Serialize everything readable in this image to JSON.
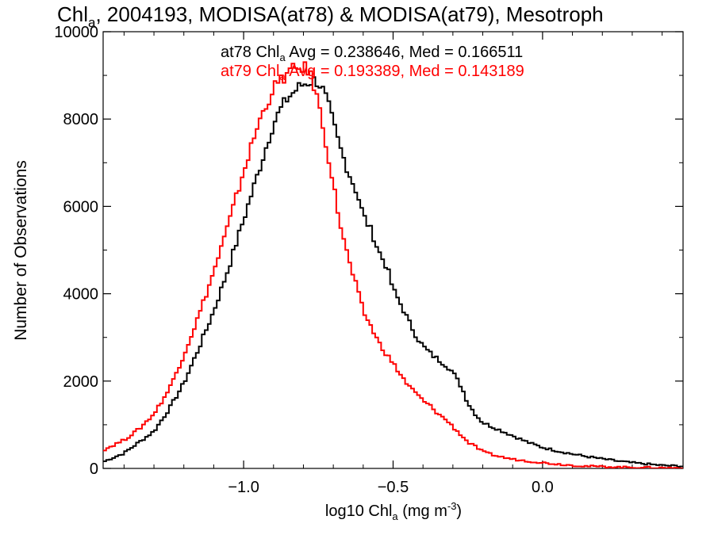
{
  "chart_data": {
    "type": "line",
    "title": {
      "pre": "Chl",
      "sub": "a",
      "post": ", 2004193, MODISA(at78) & MODISA(at79), Mesotroph"
    },
    "xlabel": {
      "pre": "log10 Chl",
      "sub": "a",
      "mid": " (mg m",
      "sup": "-3",
      "post": ")"
    },
    "ylabel": "Number of Observations",
    "xlim": [
      -1.47,
      0.47
    ],
    "ylim": [
      0,
      10000
    ],
    "xticks": [
      {
        "value": -1.0,
        "label": "−1.0"
      },
      {
        "value": -0.5,
        "label": "−0.5"
      },
      {
        "value": 0.0,
        "label": "0.0"
      }
    ],
    "yticks": [
      {
        "value": 0,
        "label": "0"
      },
      {
        "value": 2000,
        "label": "2000"
      },
      {
        "value": 4000,
        "label": "4000"
      },
      {
        "value": 6000,
        "label": "6000"
      },
      {
        "value": 8000,
        "label": "8000"
      },
      {
        "value": 10000,
        "label": "10000"
      }
    ],
    "series": [
      {
        "name": "at78",
        "color": "#000000",
        "annotation": {
          "pre": "at78 Chl",
          "sub": "a",
          "post": " Avg = 0.238646, Med = 0.166511"
        },
        "x": [
          -1.47,
          -1.4,
          -1.35,
          -1.3,
          -1.25,
          -1.2,
          -1.15,
          -1.1,
          -1.05,
          -1.0,
          -0.95,
          -0.9,
          -0.87,
          -0.85,
          -0.82,
          -0.8,
          -0.78,
          -0.76,
          -0.74,
          -0.72,
          -0.7,
          -0.68,
          -0.65,
          -0.62,
          -0.6,
          -0.57,
          -0.55,
          -0.52,
          -0.5,
          -0.47,
          -0.45,
          -0.42,
          -0.4,
          -0.37,
          -0.35,
          -0.32,
          -0.3,
          -0.27,
          -0.25,
          -0.22,
          -0.2,
          -0.15,
          -0.1,
          -0.05,
          0.0,
          0.05,
          0.1,
          0.15,
          0.2,
          0.25,
          0.3,
          0.35,
          0.4,
          0.47
        ],
        "y": [
          150,
          350,
          600,
          850,
          1350,
          1950,
          2750,
          3600,
          4600,
          5700,
          6800,
          7900,
          8300,
          8500,
          8700,
          8800,
          8850,
          8900,
          8750,
          8400,
          7900,
          7400,
          6800,
          6300,
          5800,
          5400,
          5000,
          4600,
          4100,
          3700,
          3400,
          3000,
          2800,
          2600,
          2500,
          2350,
          2200,
          1850,
          1500,
          1200,
          1050,
          900,
          750,
          600,
          480,
          400,
          330,
          270,
          220,
          170,
          130,
          100,
          70,
          50
        ]
      },
      {
        "name": "at79",
        "color": "#ff0000",
        "annotation": {
          "pre": "at79 Chl",
          "sub": "a",
          "post": " Avg = 0.193389, Med = 0.143189"
        },
        "x": [
          -1.47,
          -1.4,
          -1.35,
          -1.3,
          -1.25,
          -1.2,
          -1.15,
          -1.1,
          -1.05,
          -1.0,
          -0.95,
          -0.92,
          -0.9,
          -0.88,
          -0.86,
          -0.84,
          -0.82,
          -0.8,
          -0.78,
          -0.76,
          -0.74,
          -0.72,
          -0.7,
          -0.68,
          -0.65,
          -0.62,
          -0.6,
          -0.57,
          -0.55,
          -0.52,
          -0.5,
          -0.47,
          -0.45,
          -0.42,
          -0.4,
          -0.37,
          -0.35,
          -0.32,
          -0.3,
          -0.27,
          -0.25,
          -0.22,
          -0.2,
          -0.15,
          -0.1,
          -0.05,
          0.0,
          0.05,
          0.1,
          0.15,
          0.2,
          0.25,
          0.3,
          0.35,
          0.4,
          0.47
        ],
        "y": [
          420,
          650,
          900,
          1250,
          1800,
          2600,
          3500,
          4500,
          5600,
          6800,
          7900,
          8400,
          8700,
          8850,
          9000,
          9100,
          9150,
          9200,
          9050,
          8700,
          8000,
          7300,
          6500,
          5700,
          4800,
          4100,
          3600,
          3200,
          2900,
          2600,
          2400,
          2100,
          1900,
          1700,
          1550,
          1400,
          1250,
          1100,
          950,
          750,
          600,
          480,
          380,
          280,
          210,
          170,
          130,
          100,
          70,
          50,
          40,
          30,
          25,
          20,
          15,
          10
        ]
      }
    ],
    "grid": false,
    "legend": "top-center annotations"
  }
}
